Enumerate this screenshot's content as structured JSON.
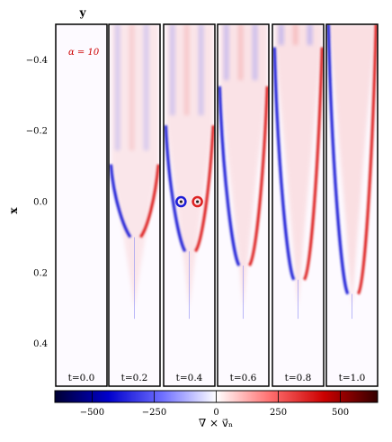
{
  "chart_data": {
    "type": "heatmap",
    "title": "",
    "top_axis_label": "y",
    "left_axis_label": "x",
    "annotation": "α = 10",
    "annotation_color": "#cc0000",
    "y_ticks": [
      "−0.4",
      "−0.2",
      "0.0",
      "0.2",
      "0.4"
    ],
    "y_tick_values": [
      -0.4,
      -0.2,
      0.0,
      0.2,
      0.4
    ],
    "y_range": [
      -0.5,
      0.52
    ],
    "panels": [
      {
        "label": "t=0.0",
        "t": 0.0
      },
      {
        "label": "t=0.2",
        "t": 0.2
      },
      {
        "label": "t=0.4",
        "t": 0.4
      },
      {
        "label": "t=0.6",
        "t": 0.6
      },
      {
        "label": "t=0.8",
        "t": 0.8
      },
      {
        "label": "t=1.0",
        "t": 1.0
      }
    ],
    "colorbar": {
      "label": "∇ × v⃗ₙ",
      "range": [
        -650,
        650
      ],
      "ticks": [
        "−500",
        "−250",
        "0",
        "250",
        "500"
      ],
      "tick_values": [
        -500,
        -250,
        0,
        250,
        500
      ],
      "colormap": [
        "#000033",
        "#0000cc",
        "#6f6fff",
        "#ffffff",
        "#ff6f6f",
        "#cc0000",
        "#330000"
      ]
    },
    "grid": false
  }
}
